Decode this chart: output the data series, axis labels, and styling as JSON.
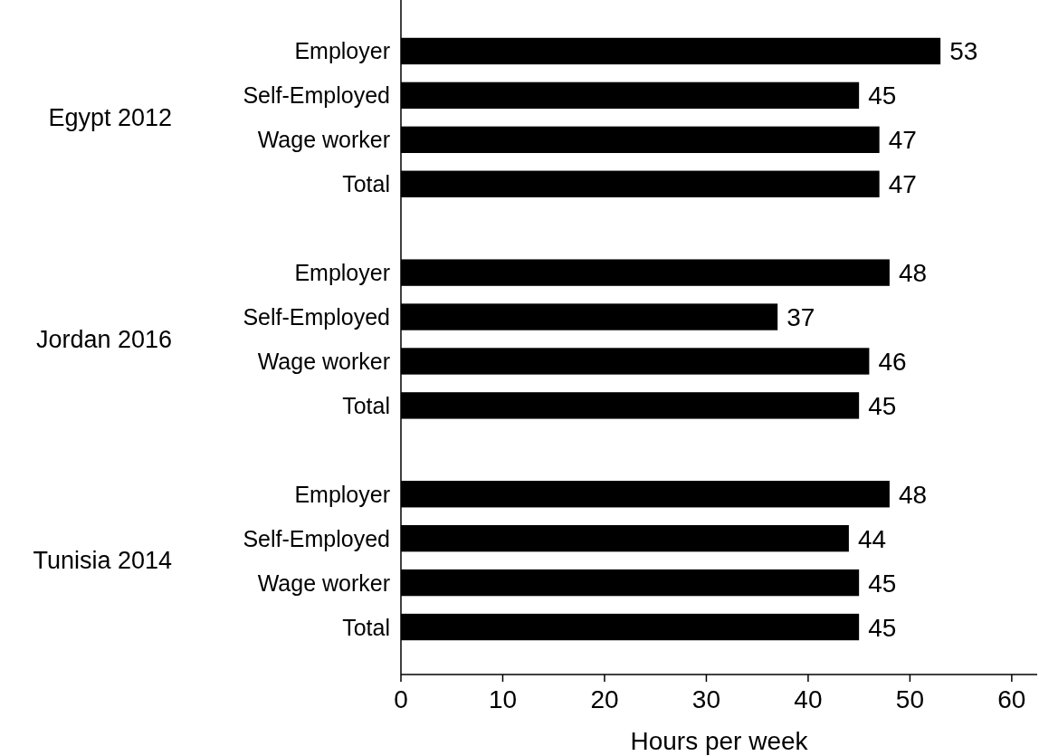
{
  "chart_data": {
    "type": "bar",
    "orientation": "horizontal",
    "xlabel": "Hours per week",
    "categories": [
      "Employer",
      "Self-Employed",
      "Wage worker",
      "Total",
      null,
      "Employer",
      "Self-Employed",
      "Wage worker",
      "Total",
      null,
      "Employer",
      "Self-Employed",
      "Wage worker",
      "Total"
    ],
    "values": [
      53,
      45,
      47,
      47,
      null,
      48,
      37,
      46,
      45,
      null,
      48,
      44,
      45,
      45
    ],
    "color": "#000000",
    "annotations": [
      "Egypt 2012",
      "Jordan 2016",
      "Tunisia 2014"
    ],
    "xlim": [
      0,
      62.5
    ],
    "xticks": [
      0,
      10,
      20,
      30,
      40,
      50,
      60
    ],
    "data_labels": true,
    "grid": false
  }
}
